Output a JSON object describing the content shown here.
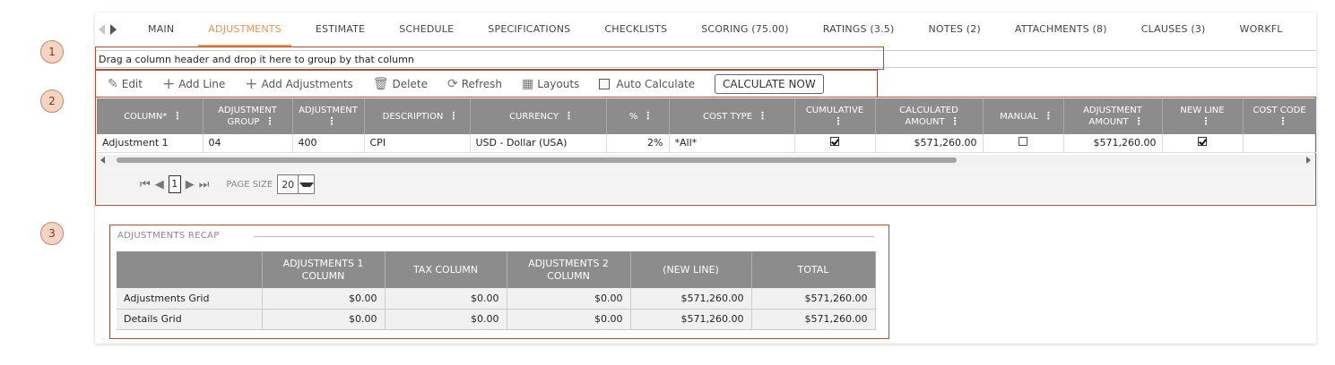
{
  "tabs": [
    {
      "label": "MAIN",
      "active": false
    },
    {
      "label": "ADJUSTMENTS",
      "active": true
    },
    {
      "label": "ESTIMATE",
      "active": false
    },
    {
      "label": "SCHEDULE",
      "active": false
    },
    {
      "label": "SPECIFICATIONS",
      "active": false
    },
    {
      "label": "CHECKLISTS",
      "active": false
    },
    {
      "label": "SCORING (75.00)",
      "active": false
    },
    {
      "label": "RATINGS (3.5)",
      "active": false
    },
    {
      "label": "NOTES (2)",
      "active": false
    },
    {
      "label": "ATTACHMENTS (8)",
      "active": false
    },
    {
      "label": "CLAUSES (3)",
      "active": false
    },
    {
      "label": "WORKFL",
      "active": false
    }
  ],
  "callouts": [
    "1",
    "2",
    "3"
  ],
  "group_bar": "Drag a column header and drop it here to group by that column",
  "toolbar": {
    "edit": "Edit",
    "add_line": "Add Line",
    "add_adjustments": "Add Adjustments",
    "delete": "Delete",
    "refresh": "Refresh",
    "layouts": "Layouts",
    "auto_calculate": "Auto Calculate",
    "calculate_now": "CALCULATE NOW"
  },
  "grid": {
    "columns": [
      {
        "line1": "COLUMN*",
        "line2": ""
      },
      {
        "line1": "ADJUSTMENT",
        "line2": "GROUP"
      },
      {
        "line1": "ADJUSTMENT",
        "line2": ""
      },
      {
        "line1": "DESCRIPTION",
        "line2": ""
      },
      {
        "line1": "CURRENCY",
        "line2": ""
      },
      {
        "line1": "%",
        "line2": ""
      },
      {
        "line1": "COST TYPE",
        "line2": ""
      },
      {
        "line1": "CUMULATIVE",
        "line2": ""
      },
      {
        "line1": "CALCULATED",
        "line2": "AMOUNT"
      },
      {
        "line1": "MANUAL",
        "line2": ""
      },
      {
        "line1": "ADJUSTMENT",
        "line2": "AMOUNT"
      },
      {
        "line1": "NEW LINE",
        "line2": ""
      },
      {
        "line1": "COST CODE",
        "line2": ""
      }
    ],
    "rows": [
      {
        "column": "Adjustment 1",
        "adjustment_group": "04",
        "adjustment": "400",
        "description": "CPI",
        "currency": "USD - Dollar (USA)",
        "percent": "2%",
        "cost_type": "*All*",
        "cumulative": true,
        "calculated_amount": "$571,260.00",
        "manual": false,
        "adjustment_amount": "$571,260.00",
        "new_line": true,
        "cost_code": ""
      }
    ]
  },
  "pager": {
    "current_page": "1",
    "page_size_label": "PAGE SIZE",
    "page_size": "20"
  },
  "recap": {
    "title": "ADJUSTMENTS RECAP",
    "headers": [
      "",
      "ADJUSTMENTS 1 COLUMN",
      "TAX COLUMN",
      "ADJUSTMENTS 2 COLUMN",
      "(NEW LINE)",
      "TOTAL"
    ],
    "rows": [
      {
        "label": "Adjustments Grid",
        "values": [
          "$0.00",
          "$0.00",
          "$0.00",
          "$571,260.00",
          "$571,260.00"
        ]
      },
      {
        "label": "Details Grid",
        "values": [
          "$0.00",
          "$0.00",
          "$0.00",
          "$571,260.00",
          "$571,260.00"
        ]
      }
    ]
  }
}
